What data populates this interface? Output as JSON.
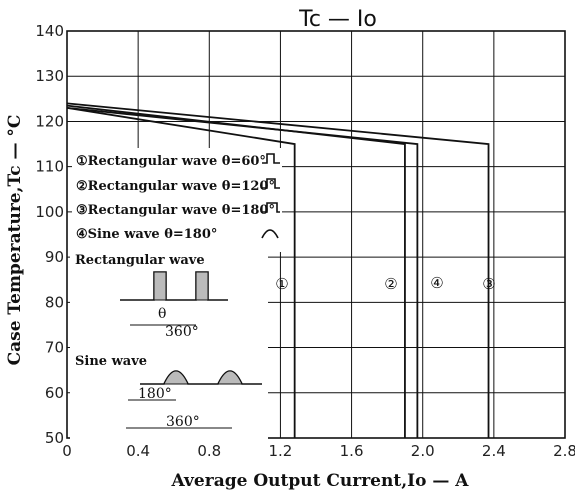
{
  "chart_data": {
    "type": "line",
    "title": "Tc  —  Io",
    "xlabel": "Average Output Current,Io — A",
    "ylabel": "Case Temperature,Tc — °C",
    "xlim": [
      0,
      2.8
    ],
    "ylim": [
      50,
      140
    ],
    "x_ticks": [
      "0",
      "0.4",
      "0.8",
      "1.2",
      "1.6",
      "2.0",
      "2.4",
      "2.8"
    ],
    "y_ticks": [
      "50",
      "60",
      "70",
      "80",
      "90",
      "100",
      "110",
      "120",
      "130",
      "140"
    ],
    "grid": true,
    "series": [
      {
        "name": "①Rectangular wave θ=60°",
        "marker": "①",
        "x": [
          0,
          1.28,
          1.28
        ],
        "y": [
          123,
          115,
          50
        ]
      },
      {
        "name": "②Rectangular wave θ=120°",
        "marker": "②",
        "x": [
          0,
          1.9,
          1.9
        ],
        "y": [
          123.5,
          115,
          50
        ]
      },
      {
        "name": "③Rectangular wave θ=180°",
        "marker": "③",
        "x": [
          0,
          2.37,
          2.37
        ],
        "y": [
          124,
          115,
          50
        ]
      },
      {
        "name": "④Sine wave θ=180°",
        "marker": "④",
        "x": [
          0,
          1.97,
          1.97
        ],
        "y": [
          123,
          115,
          50
        ]
      }
    ],
    "inset": {
      "rect_label": "Rectangular wave",
      "sine_label": "Sine wave",
      "theta": "θ",
      "angle_180": "180°",
      "angle_360": "360°"
    }
  }
}
